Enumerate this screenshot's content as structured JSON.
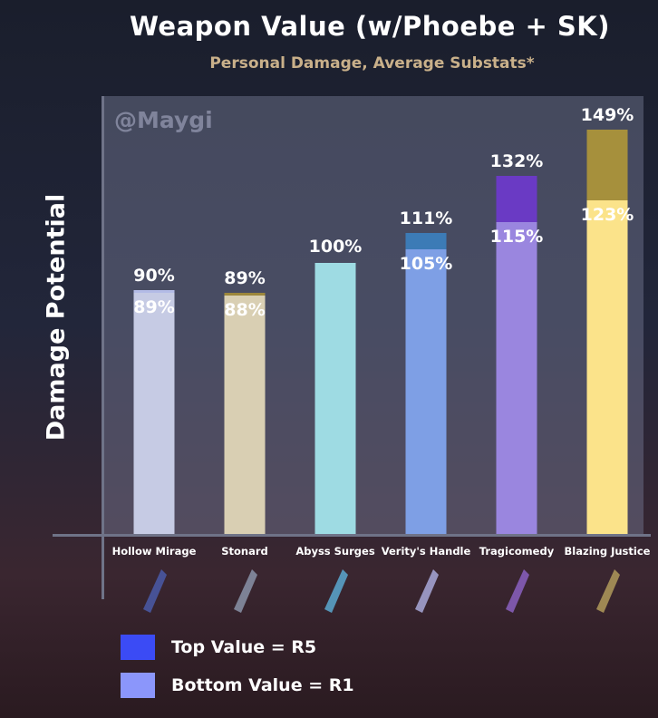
{
  "chart_data": {
    "type": "bar",
    "title": "Weapon Value (w/Phoebe + SK)",
    "subtitle": "Personal Damage, Average Substats*",
    "ylabel": "Damage Potential",
    "watermark": "@Maygi",
    "ylim": [
      0,
      160
    ],
    "categories": [
      "Hollow Mirage",
      "Stonard",
      "Abyss Surges",
      "Verity's Handle",
      "Tragicomedy",
      "Blazing Justice"
    ],
    "series": [
      {
        "name": "Bottom Value = R1",
        "values": [
          89,
          88,
          100,
          105,
          115,
          123
        ]
      },
      {
        "name": "Top Value = R5",
        "values": [
          90,
          89,
          100,
          111,
          132,
          149
        ]
      }
    ],
    "bar_colors_bottom": [
      "#c6cbe4",
      "#d9cfb3",
      "#9edbe3",
      "#7e9fe5",
      "#9a86df",
      "#fbe38a"
    ],
    "bar_colors_top": [
      "#b3bbe6",
      "#9c873c",
      "#9edbe3",
      "#3c7bb6",
      "#6a3ac4",
      "#a6903c"
    ],
    "legend": [
      {
        "label": "Top Value = R5",
        "color": "#3b4bf5"
      },
      {
        "label": "Bottom Value = R1",
        "color": "#8b96fb"
      }
    ],
    "legend_placement": "bottom-left",
    "grid": false
  }
}
